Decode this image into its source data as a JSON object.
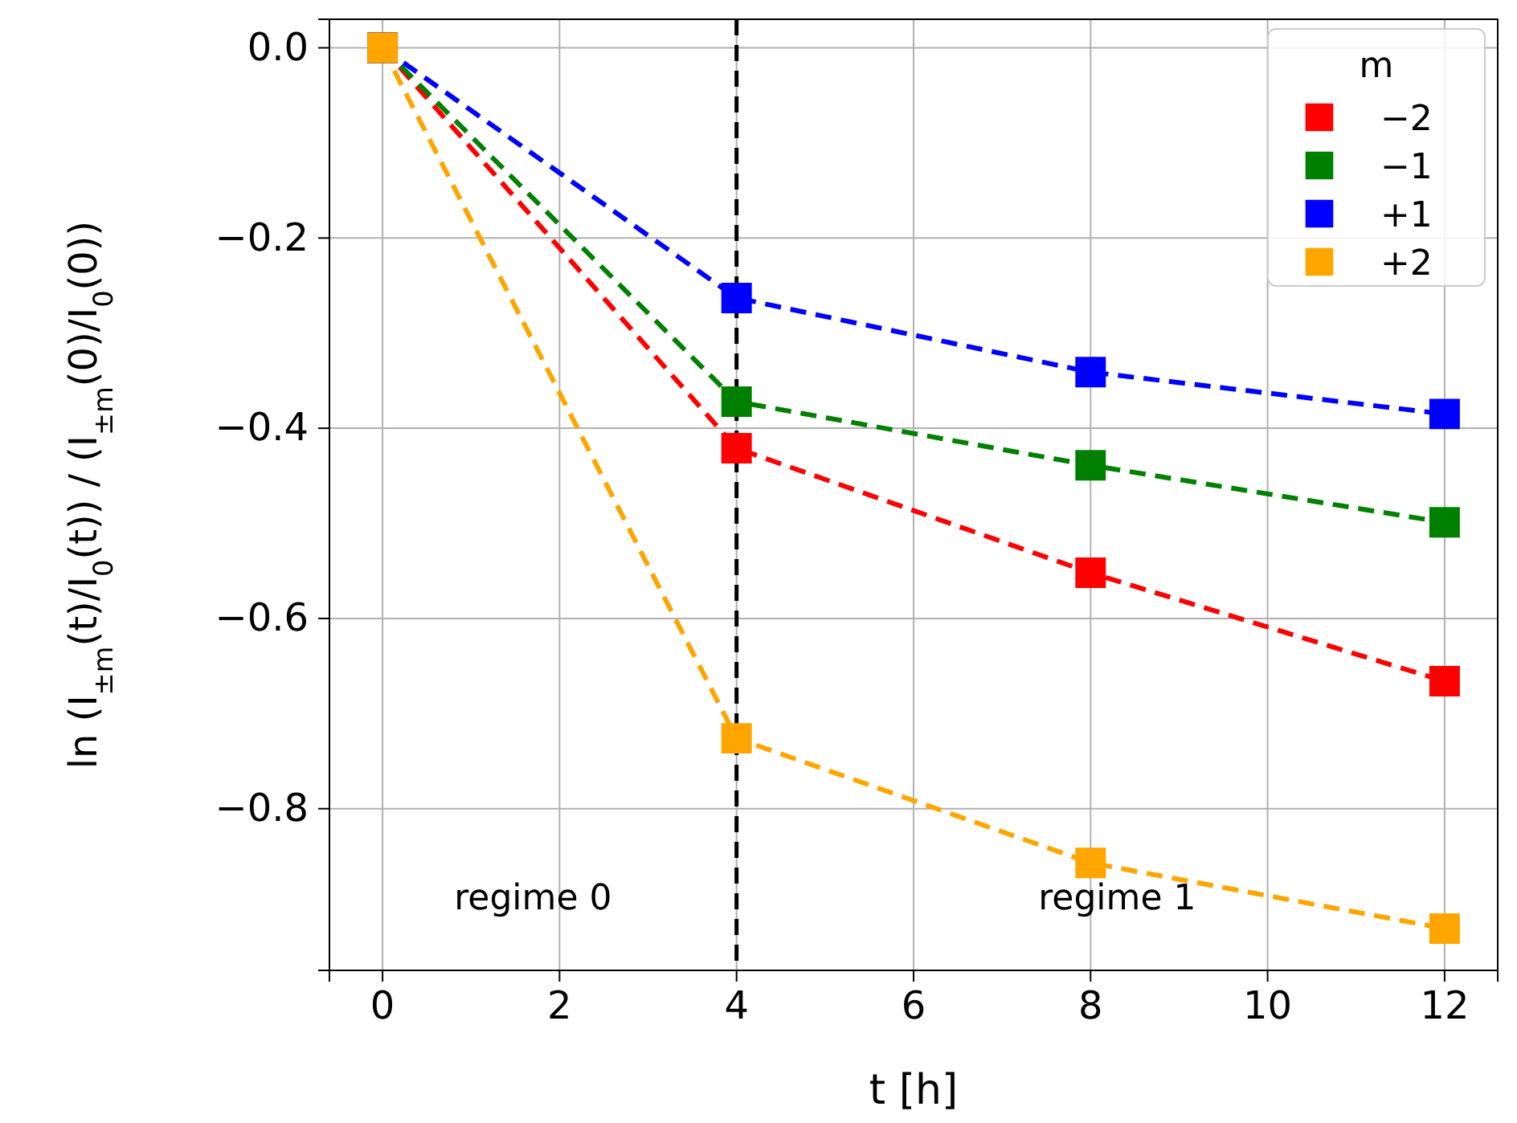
{
  "chart_data": {
    "type": "line",
    "xlabel": "t [h]",
    "ylabel": "ln (I$_{±m}$(t)/I$_{0}$(t)) / (I$_{±m}$(0)/I$_{0}$(0))",
    "legend_title": "m",
    "x": [
      0,
      4,
      8,
      12
    ],
    "series": [
      {
        "name": "−2",
        "color": "#ff0000",
        "values": [
          0,
          -0.421,
          -0.552,
          -0.666
        ]
      },
      {
        "name": "−1",
        "color": "#008000",
        "values": [
          0,
          -0.372,
          -0.439,
          -0.499
        ]
      },
      {
        "name": "+1",
        "color": "#0000ff",
        "values": [
          0,
          -0.263,
          -0.341,
          -0.385
        ]
      },
      {
        "name": "+2",
        "color": "#ffa500",
        "values": [
          0,
          -0.726,
          -0.857,
          -0.926
        ]
      }
    ],
    "xlim": [
      -0.6,
      12.6
    ],
    "ylim": [
      -0.97,
      0.03
    ],
    "xticks": [
      0,
      2,
      4,
      6,
      8,
      10,
      12
    ],
    "yticks": [
      {
        "value": 0,
        "label": "0.0"
      },
      {
        "value": -0.2,
        "label": "−0.2"
      },
      {
        "value": -0.4,
        "label": "−0.4"
      },
      {
        "value": -0.6,
        "label": "−0.6"
      },
      {
        "value": -0.8,
        "label": "−0.8"
      }
    ],
    "ref_lines": [
      {
        "axis": "x",
        "value": 4,
        "color": "#000000",
        "line_style": "dashed"
      }
    ],
    "annotations": [
      "regime 0",
      "regime 1"
    ],
    "grid": true,
    "legend": "top right",
    "marker": "square",
    "line_style": "dashed"
  }
}
